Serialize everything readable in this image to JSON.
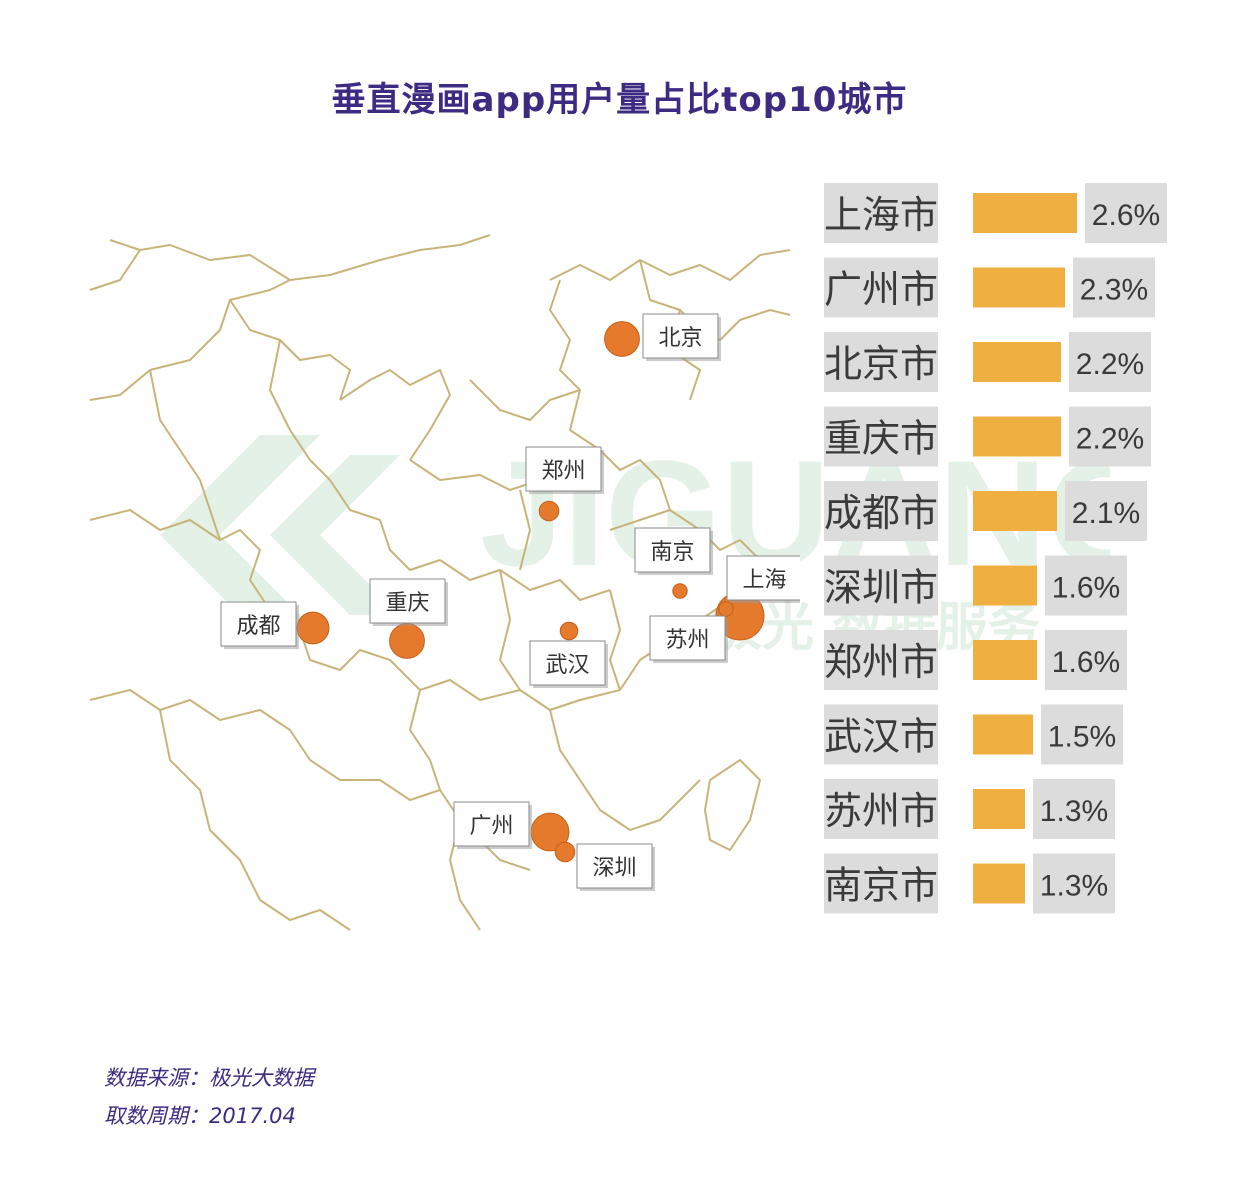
{
  "title": "垂直漫画app用户量占比top10城市",
  "footer": {
    "source": "数据来源：极光大数据",
    "period": "取数周期：2017.04"
  },
  "watermark": {
    "brand": "JIGUANG",
    "slogan": "极光 数据服务"
  },
  "colors": {
    "title": "#3d2a82",
    "bar": "#f0b041",
    "label_bg": "#dcdcdc",
    "bubble": "#e57a2c",
    "map_border": "#c8b47a"
  },
  "chart_data": {
    "type": "bar",
    "orientation": "horizontal",
    "categories": [
      "上海市",
      "广州市",
      "北京市",
      "重庆市",
      "成都市",
      "深圳市",
      "郑州市",
      "武汉市",
      "苏州市",
      "南京市"
    ],
    "values": [
      2.6,
      2.3,
      2.2,
      2.2,
      2.1,
      1.6,
      1.6,
      1.5,
      1.3,
      1.3
    ],
    "value_labels": [
      "2.6%",
      "2.3%",
      "2.2%",
      "2.2%",
      "2.1%",
      "1.6%",
      "1.6%",
      "1.5%",
      "1.3%",
      "1.3%"
    ],
    "map_cities": [
      {
        "name": "北京",
        "value": 2.2
      },
      {
        "name": "郑州",
        "value": 1.6
      },
      {
        "name": "南京",
        "value": 1.3
      },
      {
        "name": "上海",
        "value": 2.6
      },
      {
        "name": "苏州",
        "value": 1.3
      },
      {
        "name": "成都",
        "value": 2.1
      },
      {
        "name": "重庆",
        "value": 2.2
      },
      {
        "name": "武汉",
        "value": 1.5
      },
      {
        "name": "广州",
        "value": 2.3
      },
      {
        "name": "深圳",
        "value": 1.6
      }
    ]
  }
}
